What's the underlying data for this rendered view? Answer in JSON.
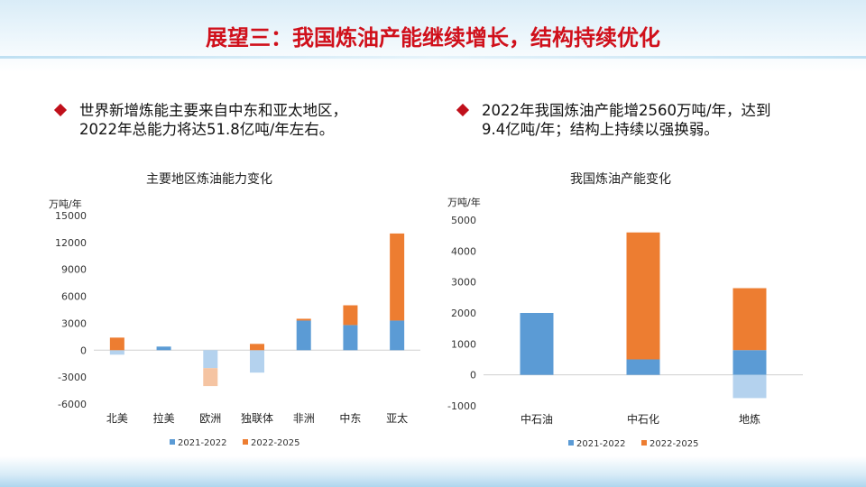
{
  "slide": {
    "title": "展望三：我国炼油产能继续增长，结构持续优化"
  },
  "bullets": [
    {
      "line1": "世界新增炼能主要来自中东和亚太地区，",
      "line2": "2022年总能力将达51.8亿吨/年左右。"
    },
    {
      "line1": "2022年我国炼油产能增2560万吨/年，达到",
      "line2": "9.4亿吨/年；结构上持续以强换弱。"
    }
  ],
  "colors": {
    "title": "#d0101b",
    "series_2021_2022": "#5b9bd5",
    "series_2022_2025": "#ed7d31"
  },
  "chart_data": [
    {
      "type": "bar",
      "stacked": true,
      "title": "主要地区炼油能力变化",
      "ylabel": "万吨/年",
      "ylim": [
        -6000,
        15000
      ],
      "yticks": [
        -6000,
        -3000,
        0,
        3000,
        6000,
        9000,
        12000,
        15000
      ],
      "categories": [
        "北美",
        "拉美",
        "欧洲",
        "独联体",
        "非洲",
        "中东",
        "亚太"
      ],
      "series": [
        {
          "name": "2021-2022",
          "values": [
            -500,
            400,
            -2000,
            -2500,
            3300,
            2800,
            3300
          ]
        },
        {
          "name": "2022-2025",
          "values": [
            1400,
            0,
            -2000,
            700,
            200,
            2200,
            9700
          ]
        }
      ],
      "legend": "bottom"
    },
    {
      "type": "bar",
      "stacked": true,
      "title": "我国炼油产能变化",
      "ylabel": "万吨/年",
      "ylim": [
        -1000,
        5000
      ],
      "yticks": [
        -1000,
        0,
        1000,
        2000,
        3000,
        4000,
        5000
      ],
      "categories": [
        "中石油",
        "中石化",
        "地炼"
      ],
      "series": [
        {
          "name": "2021-2022",
          "values": [
            2000,
            500,
            800
          ],
          "negative_values": [
            0,
            0,
            -750
          ]
        },
        {
          "name": "2022-2025",
          "values": [
            0,
            4100,
            2000
          ]
        }
      ],
      "legend": "bottom"
    }
  ]
}
